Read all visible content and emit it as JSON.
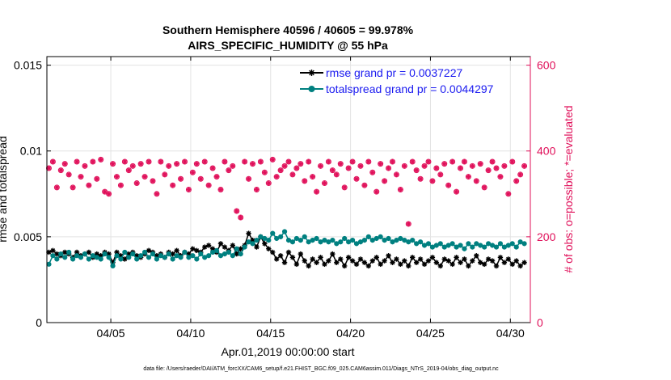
{
  "chart_data": {
    "type": "line",
    "title": "Southern Hemisphere 40596 / 40605 = 99.978%",
    "subtitle": "AIRS_SPECIFIC_HUMIDITY @ 55 hPa",
    "xlabel": "Apr.01,2019 00:00:00 start",
    "ylabel": "rmse and totalspread",
    "ylabel_right": "# of obs: o=possible; *=evaluated",
    "footnote": "data file: /Users/raeder/DAI/ATM_forcXX/CAM6_setup/f.e21.FHIST_BGC.f09_025.CAM6assim.011/Diags_NTrS_2019-04/obs_diag_output.nc",
    "xlim": [
      1,
      31.25
    ],
    "ylim": [
      0,
      0.0155
    ],
    "ylim_right": [
      0,
      620
    ],
    "x_ticks": [
      {
        "value": 5,
        "label": "04/05"
      },
      {
        "value": 10,
        "label": "04/10"
      },
      {
        "value": 15,
        "label": "04/15"
      },
      {
        "value": 20,
        "label": "04/20"
      },
      {
        "value": 25,
        "label": "04/25"
      },
      {
        "value": 30,
        "label": "04/30"
      }
    ],
    "y_ticks": [
      {
        "value": 0,
        "label": "0"
      },
      {
        "value": 0.005,
        "label": "0.005"
      },
      {
        "value": 0.01,
        "label": "0.01"
      },
      {
        "value": 0.015,
        "label": "0.015"
      }
    ],
    "y_ticks_right": [
      {
        "value": 0,
        "label": "0"
      },
      {
        "value": 200,
        "label": "200"
      },
      {
        "value": 400,
        "label": "400"
      },
      {
        "value": 600,
        "label": "600"
      }
    ],
    "grid": true,
    "legend_position": "top-right",
    "x_start": 1.125,
    "x_step": 0.25,
    "series": [
      {
        "name": "rmse",
        "legend": "rmse grand pr = 0.0037227",
        "color": "#000000",
        "marker": "asterisk",
        "values": [
          0.0041,
          0.0042,
          0.004,
          0.0039,
          0.0041,
          0.004,
          0.0038,
          0.0041,
          0.0039,
          0.004,
          0.0041,
          0.0038,
          0.004,
          0.0039,
          0.0041,
          0.004,
          0.0035,
          0.0041,
          0.0039,
          0.0037,
          0.004,
          0.0041,
          0.0039,
          0.0038,
          0.004,
          0.0042,
          0.0041,
          0.0039,
          0.004,
          0.0038,
          0.0041,
          0.004,
          0.0042,
          0.0039,
          0.0041,
          0.004,
          0.0043,
          0.0042,
          0.0041,
          0.0044,
          0.0045,
          0.0043,
          0.0041,
          0.0046,
          0.0044,
          0.0042,
          0.0045,
          0.004,
          0.0043,
          0.0045,
          0.0052,
          0.0048,
          0.0044,
          0.005,
          0.0046,
          0.0043,
          0.0041,
          0.0037,
          0.0039,
          0.0035,
          0.0041,
          0.0038,
          0.0034,
          0.004,
          0.0036,
          0.0033,
          0.0037,
          0.0035,
          0.0038,
          0.0034,
          0.0036,
          0.004,
          0.0035,
          0.0037,
          0.0033,
          0.0038,
          0.0036,
          0.0034,
          0.0037,
          0.0035,
          0.0033,
          0.0036,
          0.0038,
          0.0034,
          0.0036,
          0.0039,
          0.0035,
          0.0037,
          0.0034,
          0.0036,
          0.0033,
          0.0038,
          0.0035,
          0.0037,
          0.0034,
          0.0036,
          0.0038,
          0.0035,
          0.0033,
          0.0037,
          0.0036,
          0.0034,
          0.0038,
          0.0035,
          0.0037,
          0.0033,
          0.0036,
          0.0039,
          0.0035,
          0.0034,
          0.0037,
          0.0036,
          0.0033,
          0.0038,
          0.0035,
          0.0037,
          0.0034,
          0.0036,
          0.0033,
          0.0035
        ]
      },
      {
        "name": "totalspread",
        "legend": "totalspread grand pr = 0.0044297",
        "color": "#008080",
        "marker": "circle",
        "values": [
          0.0034,
          0.0039,
          0.0037,
          0.004,
          0.0038,
          0.0041,
          0.0037,
          0.0039,
          0.0038,
          0.004,
          0.0037,
          0.0039,
          0.0038,
          0.0037,
          0.004,
          0.0038,
          0.0033,
          0.0039,
          0.0037,
          0.0041,
          0.0038,
          0.004,
          0.0037,
          0.0039,
          0.0041,
          0.0038,
          0.004,
          0.0037,
          0.0039,
          0.0038,
          0.004,
          0.0037,
          0.0039,
          0.0038,
          0.0041,
          0.0038,
          0.0039,
          0.0037,
          0.004,
          0.0038,
          0.0039,
          0.0041,
          0.0042,
          0.0039,
          0.004,
          0.0041,
          0.0039,
          0.0043,
          0.004,
          0.0044,
          0.0047,
          0.0046,
          0.0048,
          0.005,
          0.0049,
          0.0048,
          0.0052,
          0.0049,
          0.005,
          0.0053,
          0.0048,
          0.0047,
          0.0049,
          0.0048,
          0.005,
          0.0047,
          0.0048,
          0.0049,
          0.0047,
          0.0048,
          0.0047,
          0.0048,
          0.0046,
          0.0047,
          0.0049,
          0.0047,
          0.0048,
          0.0046,
          0.0047,
          0.0048,
          0.005,
          0.0048,
          0.0049,
          0.005,
          0.0048,
          0.0049,
          0.0047,
          0.0048,
          0.0049,
          0.0048,
          0.0047,
          0.0048,
          0.0046,
          0.0047,
          0.0045,
          0.0046,
          0.0044,
          0.0045,
          0.0046,
          0.0044,
          0.0045,
          0.0046,
          0.0044,
          0.0045,
          0.0043,
          0.0046,
          0.0044,
          0.0046,
          0.0045,
          0.0044,
          0.0046,
          0.0045,
          0.0044,
          0.0046,
          0.0044,
          0.0045,
          0.0046,
          0.0044,
          0.0047,
          0.0046
        ]
      }
    ],
    "obs_count": {
      "name": "# of obs",
      "color": "#e0105a",
      "possible_marker": "circle",
      "evaluated_marker": "asterisk",
      "values": [
        360,
        375,
        315,
        355,
        370,
        345,
        315,
        375,
        340,
        365,
        320,
        375,
        335,
        380,
        305,
        300,
        370,
        340,
        320,
        375,
        355,
        365,
        325,
        370,
        340,
        375,
        330,
        300,
        375,
        345,
        365,
        320,
        370,
        335,
        375,
        310,
        350,
        370,
        335,
        375,
        320,
        360,
        340,
        310,
        375,
        355,
        365,
        260,
        245,
        375,
        335,
        370,
        310,
        375,
        350,
        325,
        380,
        340,
        355,
        365,
        375,
        345,
        360,
        370,
        330,
        375,
        340,
        305,
        365,
        325,
        375,
        355,
        345,
        370,
        315,
        360,
        375,
        335,
        365,
        320,
        375,
        350,
        305,
        370,
        330,
        360,
        375,
        345,
        310,
        365,
        230,
        375,
        355,
        335,
        365,
        375,
        330,
        360,
        345,
        370,
        320,
        375,
        305,
        360,
        375,
        340,
        365,
        330,
        370,
        315,
        355,
        375,
        360,
        340,
        365,
        300,
        375,
        330,
        345,
        365
      ]
    }
  }
}
